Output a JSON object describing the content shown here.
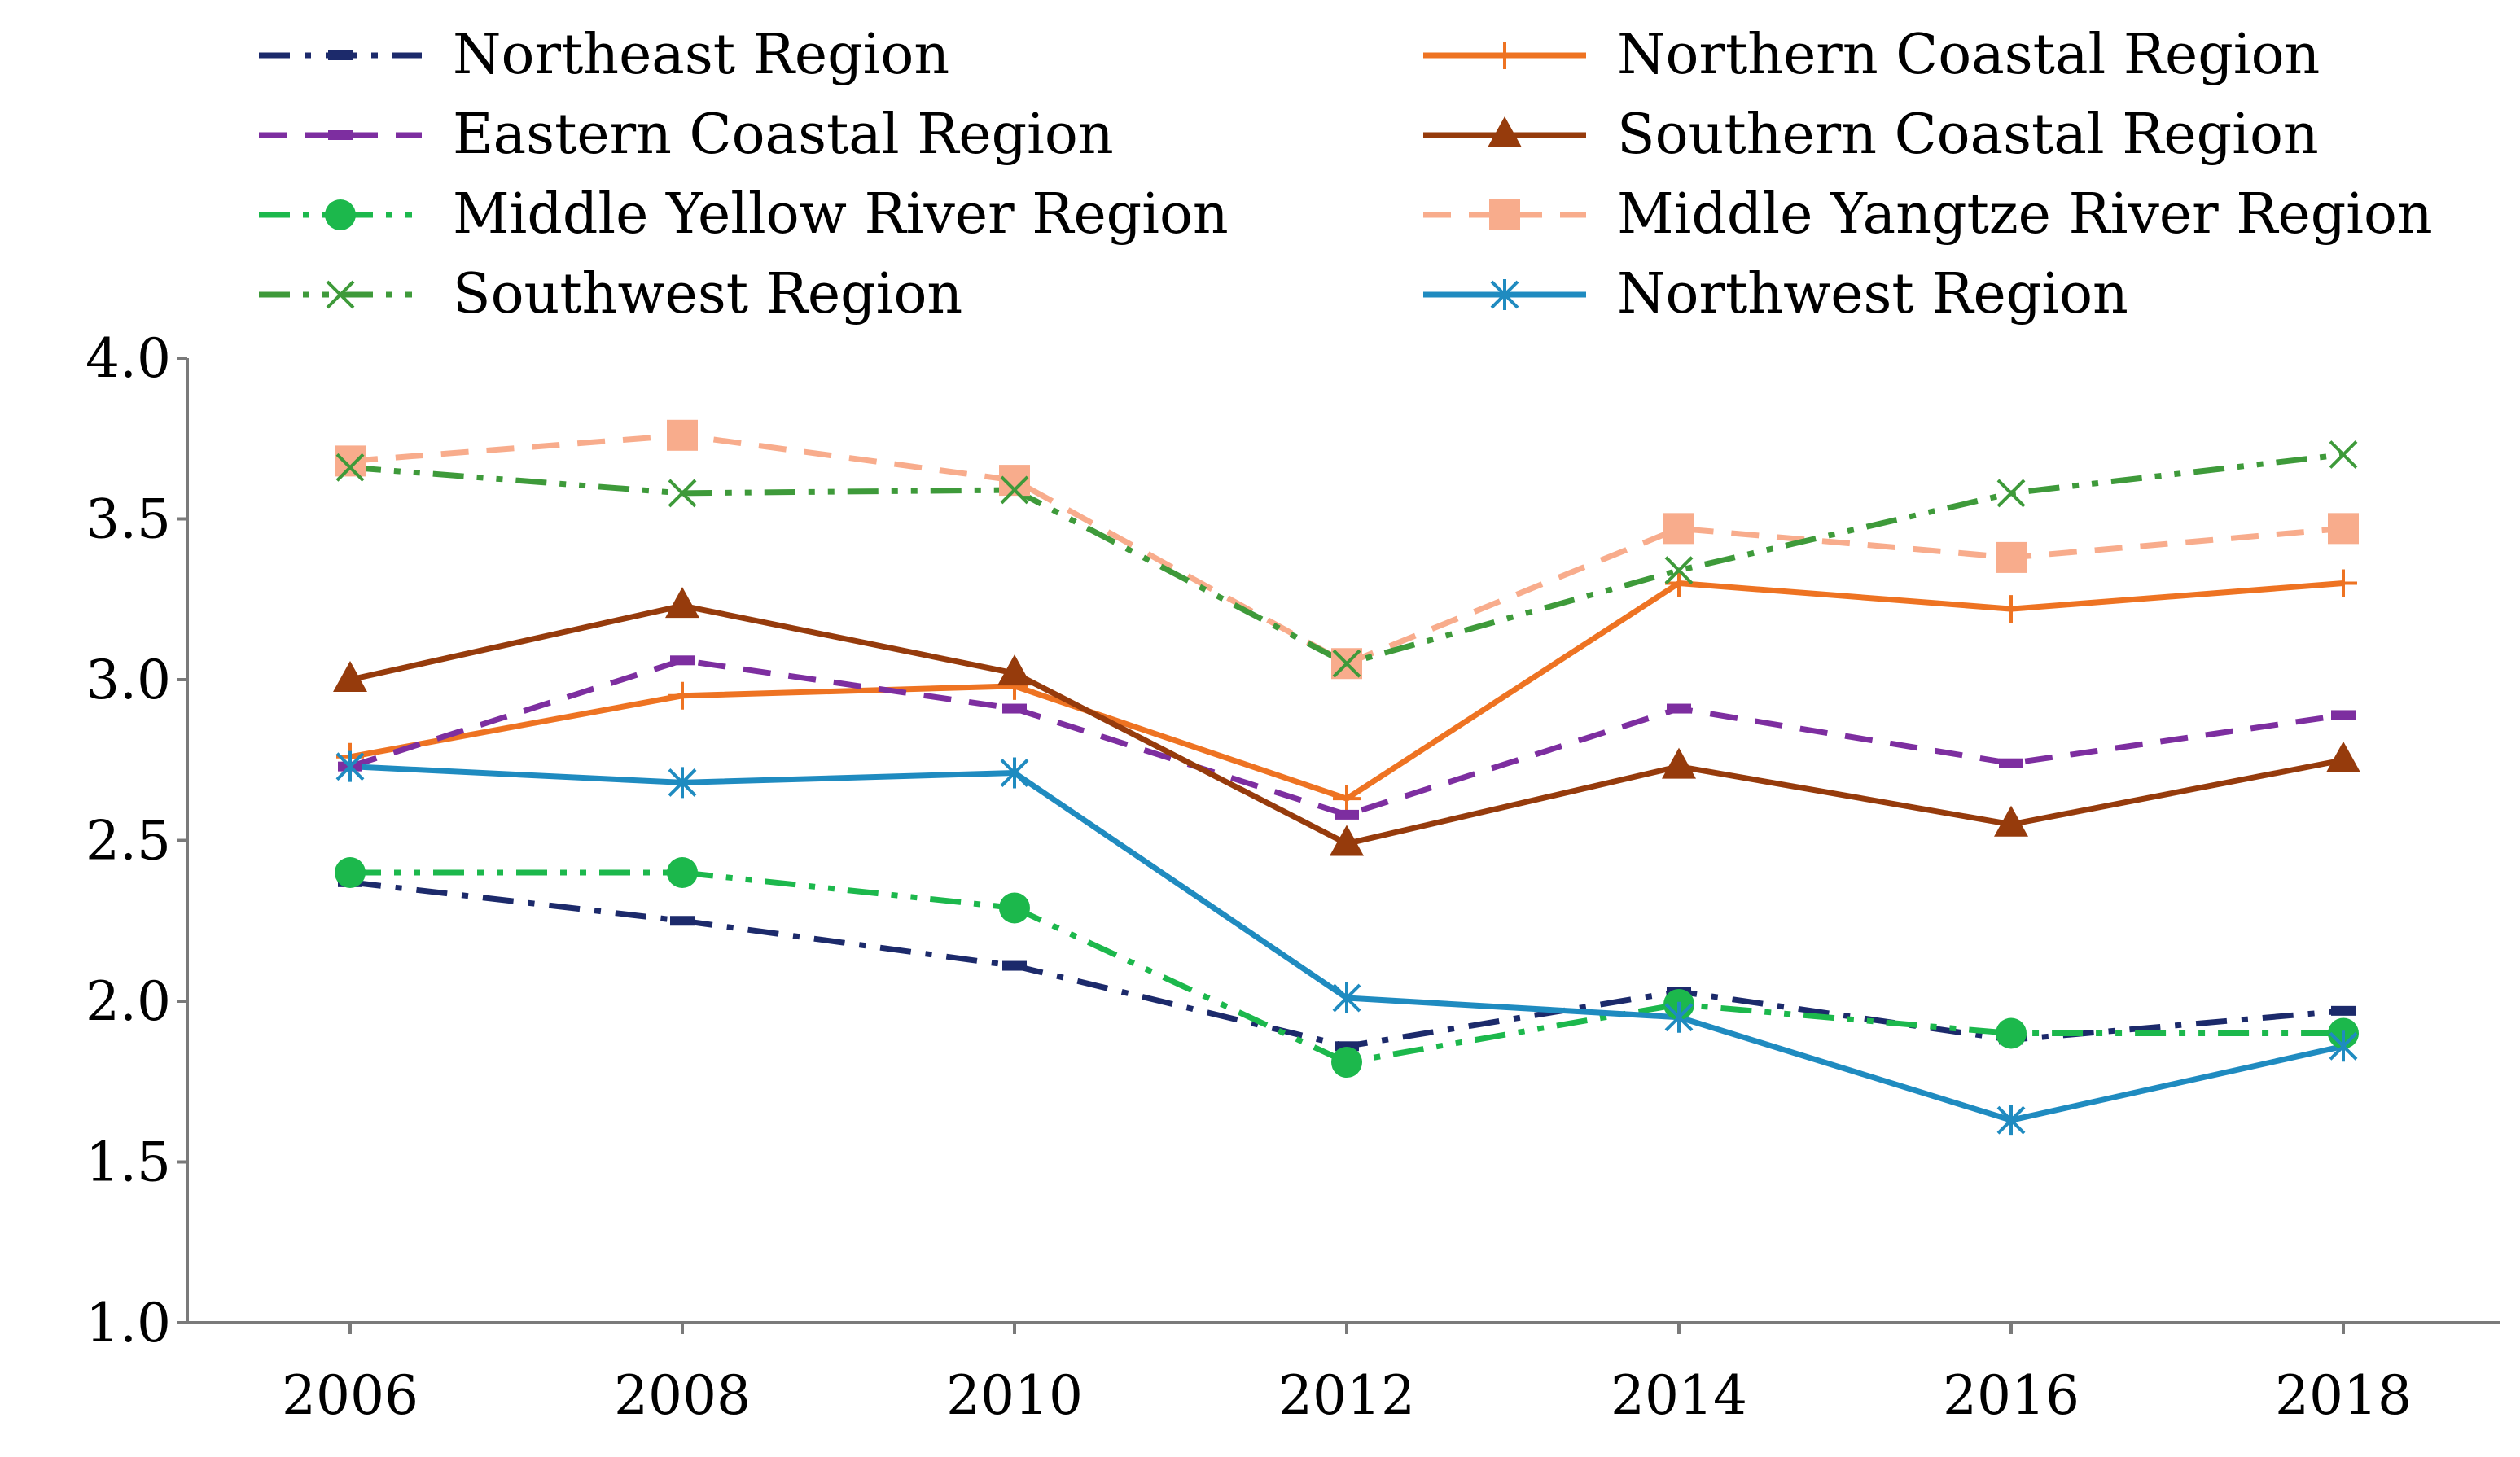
{
  "chart_data": {
    "type": "line",
    "title": "",
    "xlabel": "",
    "ylabel": "",
    "ylim": [
      1.0,
      4.0
    ],
    "yticks": [
      "1.0",
      "1.5",
      "2.0",
      "2.5",
      "3.0",
      "3.5",
      "4.0"
    ],
    "categories": [
      "2006",
      "2008",
      "2010",
      "2012",
      "2014",
      "2016",
      "2018"
    ],
    "grid": false,
    "legend_position": "top",
    "series": [
      {
        "name": "Northeast Region",
        "values": [
          2.37,
          2.25,
          2.11,
          1.86,
          2.03,
          1.88,
          1.97
        ],
        "color": "#1c2a6b",
        "dash": "dashdot",
        "marker": "dash"
      },
      {
        "name": "Northern Coastal Region",
        "values": [
          2.76,
          2.95,
          2.98,
          2.63,
          3.3,
          3.22,
          3.3
        ],
        "color": "#ee7322",
        "dash": "solid",
        "marker": "plus"
      },
      {
        "name": "Eastern Coastal Region",
        "values": [
          2.73,
          3.06,
          2.91,
          2.58,
          2.91,
          2.74,
          2.89
        ],
        "color": "#7d2ea0",
        "dash": "dashed",
        "marker": "dash"
      },
      {
        "name": "Southern Coastal Region",
        "values": [
          3.0,
          3.23,
          3.02,
          2.49,
          2.73,
          2.55,
          2.75
        ],
        "color": "#963b0c",
        "dash": "solid",
        "marker": "triangle"
      },
      {
        "name": "Middle Yellow River Region",
        "values": [
          2.4,
          2.4,
          2.29,
          1.81,
          1.99,
          1.9,
          1.9
        ],
        "color": "#1cb84c",
        "dash": "dashdotdot",
        "marker": "circle"
      },
      {
        "name": "Middle Yangtze River Region",
        "values": [
          3.68,
          3.76,
          3.62,
          3.05,
          3.47,
          3.38,
          3.47
        ],
        "color": "#f8ac8c",
        "dash": "dashed",
        "marker": "square"
      },
      {
        "name": "Southwest Region",
        "values": [
          3.66,
          3.58,
          3.59,
          3.05,
          3.34,
          3.58,
          3.7
        ],
        "color": "#3e9a3a",
        "dash": "dashdotdot",
        "marker": "x"
      },
      {
        "name": "Northwest Region",
        "values": [
          2.73,
          2.68,
          2.71,
          2.01,
          1.95,
          1.63,
          1.86
        ],
        "color": "#1f8bc0",
        "dash": "solid",
        "marker": "asterisk"
      }
    ]
  }
}
